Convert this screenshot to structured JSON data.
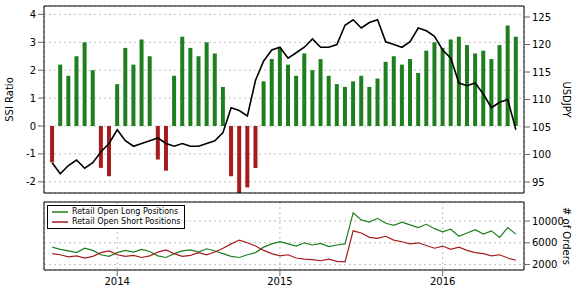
{
  "chart_data": [
    {
      "type": "bar",
      "x": [
        2013.6,
        2013.65,
        2013.7,
        2013.75,
        2013.8,
        2013.85,
        2013.9,
        2013.95,
        2014,
        2014.05,
        2014.1,
        2014.15,
        2014.2,
        2014.25,
        2014.3,
        2014.35,
        2014.4,
        2014.45,
        2014.5,
        2014.55,
        2014.6,
        2014.65,
        2014.7,
        2014.75,
        2014.8,
        2014.85,
        2014.9,
        2014.95,
        2015,
        2015.05,
        2015.1,
        2015.15,
        2015.2,
        2015.25,
        2015.3,
        2015.35,
        2015.4,
        2015.45,
        2015.5,
        2015.55,
        2015.6,
        2015.65,
        2015.7,
        2015.75,
        2015.8,
        2015.85,
        2015.9,
        2015.95,
        2016,
        2016.05,
        2016.1,
        2016.15,
        2016.2,
        2016.25,
        2016.3,
        2016.35,
        2016.4,
        2016.45
      ],
      "series": [
        {
          "type": "bar",
          "values": [
            -1.3,
            2.2,
            1.8,
            2.5,
            3.0,
            2.0,
            -1.5,
            -1.8,
            1.5,
            2.8,
            2.2,
            3.1,
            2.5,
            -1.2,
            -1.6,
            1.8,
            3.2,
            2.8,
            2.5,
            3.0,
            2.6,
            1.4,
            -1.8,
            -2.4,
            -2.2,
            -1.5,
            1.6,
            2.4,
            2.8,
            2.2,
            1.8,
            2.6,
            2.0,
            2.4,
            1.8,
            1.5,
            1.4,
            1.6,
            1.8,
            1.4,
            1.7,
            2.3,
            2.5,
            2.2,
            2.4,
            1.9,
            2.7,
            3.0,
            2.8,
            3.1,
            3.2,
            2.9,
            2.6,
            2.7,
            2.4,
            2.9,
            3.6,
            3.2
          ],
          "colors": [
            "#a51c1c",
            "#1f7f1f",
            "#1f7f1f",
            "#1f7f1f",
            "#1f7f1f",
            "#1f7f1f",
            "#a51c1c",
            "#a51c1c",
            "#1f7f1f",
            "#1f7f1f",
            "#1f7f1f",
            "#1f7f1f",
            "#1f7f1f",
            "#a51c1c",
            "#a51c1c",
            "#1f7f1f",
            "#1f7f1f",
            "#1f7f1f",
            "#1f7f1f",
            "#1f7f1f",
            "#1f7f1f",
            "#1f7f1f",
            "#a51c1c",
            "#a51c1c",
            "#a51c1c",
            "#a51c1c",
            "#1f7f1f",
            "#1f7f1f",
            "#1f7f1f",
            "#1f7f1f",
            "#1f7f1f",
            "#1f7f1f",
            "#1f7f1f",
            "#1f7f1f",
            "#1f7f1f",
            "#1f7f1f",
            "#1f7f1f",
            "#1f7f1f",
            "#1f7f1f",
            "#1f7f1f",
            "#1f7f1f",
            "#1f7f1f",
            "#1f7f1f",
            "#1f7f1f",
            "#1f7f1f",
            "#1f7f1f",
            "#1f7f1f",
            "#1f7f1f",
            "#1f7f1f",
            "#1f7f1f",
            "#1f7f1f",
            "#1f7f1f",
            "#1f7f1f",
            "#1f7f1f",
            "#1f7f1f",
            "#1f7f1f",
            "#1f7f1f",
            "#1f7f1f"
          ]
        },
        {
          "type": "line",
          "axis": "y2",
          "color": "#000000",
          "values": [
            98.5,
            96.5,
            98.0,
            99.0,
            97.5,
            98.5,
            100.5,
            102.0,
            104.5,
            102.5,
            101.5,
            102.0,
            102.5,
            103.0,
            102.0,
            101.5,
            102.0,
            101.5,
            101.5,
            102.0,
            102.5,
            104.0,
            108.5,
            108.0,
            107.0,
            113.5,
            117.0,
            119.0,
            119.5,
            117.5,
            118.5,
            119.5,
            121.0,
            119.5,
            119.5,
            120.0,
            123.5,
            124.5,
            123.0,
            124.0,
            124.5,
            120.5,
            120.0,
            119.5,
            120.5,
            123.0,
            122.5,
            121.5,
            119.0,
            117.5,
            113.0,
            112.5,
            113.0,
            111.0,
            108.5,
            109.5,
            110.0,
            104.5
          ]
        }
      ],
      "y_label": "SSI Ratio",
      "y2_label": "USDJPY",
      "xlim": [
        2013.55,
        2016.5
      ],
      "xticks": [
        2014,
        2015,
        2016
      ],
      "ylim": [
        -2.4,
        4.3
      ],
      "yticks": [
        -2,
        -1,
        0,
        1,
        2,
        3,
        4
      ],
      "y2lim": [
        93,
        127
      ],
      "y2ticks": [
        95,
        100,
        105,
        110,
        115,
        120,
        125
      ],
      "grid": true,
      "tick_labels": "y"
    },
    {
      "type": "line",
      "x": [
        2013.6,
        2013.65,
        2013.7,
        2013.75,
        2013.8,
        2013.85,
        2013.9,
        2013.95,
        2014,
        2014.05,
        2014.1,
        2014.15,
        2014.2,
        2014.25,
        2014.3,
        2014.35,
        2014.4,
        2014.45,
        2014.5,
        2014.55,
        2014.6,
        2014.65,
        2014.7,
        2014.75,
        2014.8,
        2014.85,
        2014.9,
        2014.95,
        2015,
        2015.05,
        2015.1,
        2015.15,
        2015.2,
        2015.25,
        2015.3,
        2015.35,
        2015.4,
        2015.45,
        2015.5,
        2015.55,
        2015.6,
        2015.65,
        2015.7,
        2015.75,
        2015.8,
        2015.85,
        2015.9,
        2015.95,
        2016,
        2016.05,
        2016.1,
        2016.15,
        2016.2,
        2016.25,
        2016.3,
        2016.35,
        2016.4,
        2016.45
      ],
      "series": [
        {
          "name": "Retail Open Long Positions",
          "color": "#1f7f1f",
          "axis": "y2",
          "values": [
            5200,
            4800,
            4500,
            4200,
            5000,
            4600,
            3800,
            3500,
            4200,
            4600,
            4300,
            4800,
            4400,
            3600,
            3300,
            4000,
            4500,
            4700,
            4300,
            4900,
            4500,
            4000,
            3500,
            3300,
            3800,
            4200,
            5200,
            5800,
            6200,
            5800,
            5400,
            6000,
            5600,
            5900,
            5300,
            5600,
            5800,
            11500,
            10200,
            9800,
            10500,
            9600,
            9200,
            9800,
            9300,
            8800,
            9400,
            8600,
            8000,
            8500,
            7200,
            7800,
            8400,
            7600,
            8200,
            7000,
            8800,
            7600
          ]
        },
        {
          "name": "Retail Open Short Positions",
          "color": "#a51c1c",
          "axis": "y2",
          "values": [
            4000,
            3800,
            3400,
            3600,
            3200,
            3500,
            4200,
            4500,
            3800,
            3500,
            3700,
            3300,
            3600,
            4300,
            4700,
            4000,
            3500,
            3700,
            4200,
            3800,
            4300,
            5000,
            5800,
            6500,
            6000,
            5400,
            4600,
            4000,
            3600,
            3800,
            3200,
            3000,
            2900,
            2700,
            3000,
            2600,
            2500,
            8200,
            7800,
            7000,
            6800,
            7200,
            6500,
            6200,
            5800,
            6000,
            5500,
            5000,
            5400,
            4800,
            5200,
            4600,
            4200,
            4000,
            3600,
            3800,
            3200,
            2800
          ]
        }
      ],
      "y2_label": "# of Orders",
      "xlim": [
        2013.55,
        2016.5
      ],
      "xticks": [
        2014,
        2015,
        2016
      ],
      "y2lim": [
        1000,
        13500
      ],
      "y2ticks": [
        2000,
        6000,
        10000
      ],
      "grid": true,
      "legend": "upper left"
    }
  ]
}
